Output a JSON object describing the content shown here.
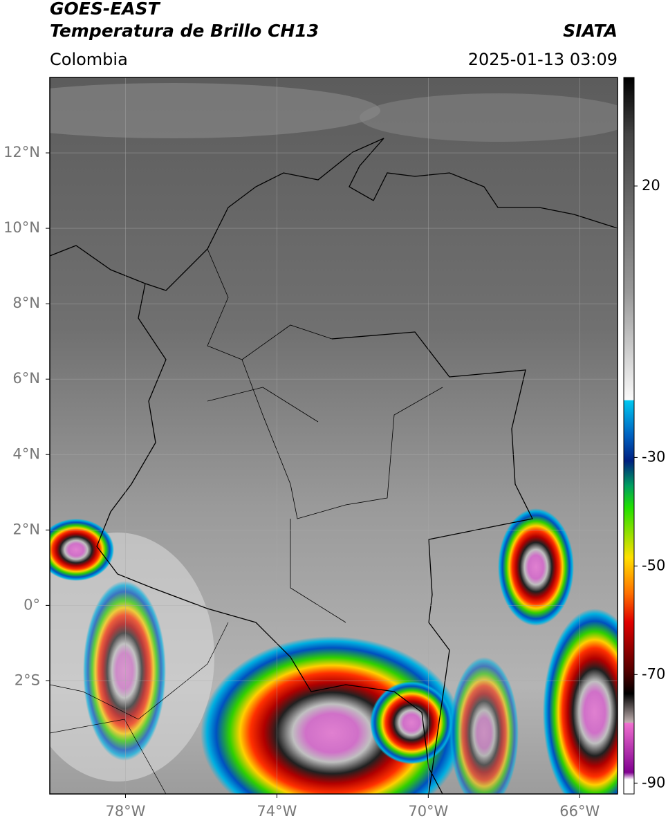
{
  "header": {
    "title": "GOES-EAST",
    "subtitle": "Temperatura de Brillo CH13",
    "source": "SIATA",
    "region": "Colombia",
    "datetime": "2025-01-13 03:09"
  },
  "map": {
    "xlim": [
      -80,
      -65
    ],
    "ylim": [
      -5,
      14
    ],
    "xticks": [
      {
        "value": -78,
        "label": "78°W"
      },
      {
        "value": -74,
        "label": "74°W"
      },
      {
        "value": -70,
        "label": "70°W"
      },
      {
        "value": -66,
        "label": "66°W"
      }
    ],
    "yticks": [
      {
        "value": 12,
        "label": "12°N"
      },
      {
        "value": 10,
        "label": "10°N"
      },
      {
        "value": 8,
        "label": "8°N"
      },
      {
        "value": 6,
        "label": "6°N"
      },
      {
        "value": 4,
        "label": "4°N"
      },
      {
        "value": 2,
        "label": "2°N"
      },
      {
        "value": 0,
        "label": "0°"
      },
      {
        "value": -2,
        "label": "2°S"
      }
    ],
    "grid": true
  },
  "colorbar": {
    "lim": [
      -92,
      40
    ],
    "ticks": [
      20,
      -30,
      -50,
      -70,
      -90
    ]
  }
}
